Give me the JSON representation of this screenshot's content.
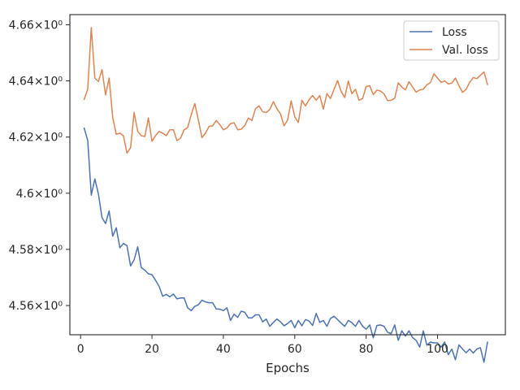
{
  "chart_data": {
    "type": "line",
    "xlabel": "Epochs",
    "ylabel": "",
    "title": "",
    "xlim": [
      -3,
      119
    ],
    "ylim": [
      4.5496,
      4.6636
    ],
    "xticks": [
      0,
      20,
      40,
      60,
      80,
      100
    ],
    "xtick_labels": [
      "0",
      "20",
      "40",
      "60",
      "80",
      "100"
    ],
    "yticks": [
      4.56,
      4.58,
      4.6,
      4.62,
      4.64,
      4.66
    ],
    "ytick_labels": [
      "4.56×10⁰",
      "4.58×10⁰",
      "4.6×10⁰",
      "4.62×10⁰",
      "4.64×10⁰",
      "4.66×10⁰"
    ],
    "grid": false,
    "legend_position": "top-right",
    "series": [
      {
        "name": "Loss",
        "color": "#4c72b0",
        "x": [
          1,
          2,
          3,
          4,
          5,
          6,
          7,
          8,
          9,
          10,
          11,
          12,
          13,
          14,
          15,
          16,
          17,
          18,
          19,
          20,
          21,
          22,
          23,
          24,
          25,
          26,
          27,
          28,
          29,
          30,
          31,
          32,
          33,
          34,
          35,
          36,
          37,
          38,
          39,
          40,
          41,
          42,
          43,
          44,
          45,
          46,
          47,
          48,
          49,
          50,
          51,
          52,
          53,
          54,
          55,
          56,
          57,
          58,
          59,
          60,
          61,
          62,
          63,
          64,
          65,
          66,
          67,
          68,
          69,
          70,
          71,
          72,
          73,
          74,
          75,
          76,
          77,
          78,
          79,
          80,
          81,
          82,
          83,
          84,
          85,
          86,
          87,
          88,
          89,
          90,
          91,
          92,
          93,
          94,
          95,
          96,
          97,
          98,
          99,
          100,
          101,
          102,
          103,
          104,
          105,
          106,
          107,
          108,
          109,
          110,
          111,
          112,
          113,
          114
        ],
        "values": [
          4.6232,
          4.6188,
          4.5993,
          4.6051,
          4.5997,
          4.5913,
          4.5892,
          4.5937,
          4.5847,
          4.5877,
          4.5806,
          4.5821,
          4.5813,
          4.5741,
          4.5763,
          4.5809,
          4.5735,
          4.5726,
          4.5713,
          4.571,
          4.569,
          4.5668,
          4.5633,
          4.564,
          4.5631,
          4.5641,
          4.5624,
          4.5627,
          4.5627,
          4.5592,
          4.5582,
          4.5597,
          4.5603,
          4.5619,
          4.5613,
          4.561,
          4.561,
          4.5588,
          4.5587,
          4.5582,
          4.5592,
          4.5547,
          4.5569,
          4.5558,
          4.558,
          4.5576,
          4.5556,
          4.5556,
          4.5567,
          4.5567,
          4.5542,
          4.5552,
          4.5526,
          4.554,
          4.5552,
          4.5542,
          4.5528,
          4.5536,
          4.5547,
          4.5521,
          4.5547,
          4.5528,
          4.555,
          4.5545,
          4.5529,
          4.5572,
          4.554,
          4.5547,
          4.5526,
          4.5554,
          4.5562,
          4.555,
          4.5537,
          4.5526,
          4.5547,
          4.5539,
          4.5526,
          4.5547,
          4.5526,
          4.5516,
          4.5531,
          4.5485,
          4.5529,
          4.5531,
          4.5526,
          4.5505,
          4.55,
          4.5531,
          4.5476,
          4.551,
          4.5491,
          4.551,
          4.5486,
          4.5476,
          4.5452,
          4.551,
          4.5459,
          4.547,
          4.5467,
          4.5467,
          4.5452,
          4.547,
          4.5425,
          4.5445,
          4.5407,
          4.546,
          4.5445,
          4.5432,
          4.5445,
          4.5431,
          4.5445,
          4.545,
          4.5398,
          4.547
        ]
      },
      {
        "name": "Val. loss",
        "color": "#dd8452",
        "x": [
          1,
          2,
          3,
          4,
          5,
          6,
          7,
          8,
          9,
          10,
          11,
          12,
          13,
          14,
          15,
          16,
          17,
          18,
          19,
          20,
          21,
          22,
          23,
          24,
          25,
          26,
          27,
          28,
          29,
          30,
          31,
          32,
          33,
          34,
          35,
          36,
          37,
          38,
          39,
          40,
          41,
          42,
          43,
          44,
          45,
          46,
          47,
          48,
          49,
          50,
          51,
          52,
          53,
          54,
          55,
          56,
          57,
          58,
          59,
          60,
          61,
          62,
          63,
          64,
          65,
          66,
          67,
          68,
          69,
          70,
          71,
          72,
          73,
          74,
          75,
          76,
          77,
          78,
          79,
          80,
          81,
          82,
          83,
          84,
          85,
          86,
          87,
          88,
          89,
          90,
          91,
          92,
          93,
          94,
          95,
          96,
          97,
          98,
          99,
          100,
          101,
          102,
          103,
          104,
          105,
          106,
          107,
          108,
          109,
          110,
          111,
          112,
          113,
          114
        ],
        "values": [
          4.6334,
          4.637,
          4.659,
          4.641,
          4.6398,
          4.644,
          4.635,
          4.641,
          4.6269,
          4.621,
          4.6214,
          4.6205,
          4.6143,
          4.6162,
          4.6288,
          4.622,
          4.6205,
          4.6202,
          4.6268,
          4.6185,
          4.6205,
          4.622,
          4.6214,
          4.6205,
          4.6226,
          4.6226,
          4.6187,
          4.6196,
          4.6226,
          4.6234,
          4.628,
          4.6319,
          4.6261,
          4.6198,
          4.6214,
          4.6238,
          4.624,
          4.6259,
          4.6244,
          4.6226,
          4.6232,
          4.6248,
          4.6251,
          4.6226,
          4.6228,
          4.6241,
          4.6268,
          4.6259,
          4.6301,
          4.6311,
          4.629,
          4.6287,
          4.6298,
          4.6326,
          4.6301,
          4.6283,
          4.624,
          4.6261,
          4.6329,
          4.6272,
          4.6252,
          4.6331,
          4.6311,
          4.6333,
          4.6348,
          4.6331,
          4.6348,
          4.6299,
          4.6355,
          4.6337,
          4.637,
          4.6401,
          4.6362,
          4.6341,
          4.64,
          4.6354,
          4.637,
          4.6331,
          4.6337,
          4.638,
          4.6383,
          4.6351,
          4.6367,
          4.6364,
          4.6354,
          4.633,
          4.6331,
          4.6338,
          4.6393,
          4.6378,
          4.6368,
          4.6397,
          4.6378,
          4.636,
          4.6368,
          4.637,
          4.6386,
          4.6394,
          4.6425,
          4.641,
          4.6395,
          4.64,
          4.6389,
          4.6392,
          4.641,
          4.6383,
          4.6359,
          4.637,
          4.6395,
          4.6412,
          4.6408,
          4.642,
          4.6432,
          4.6387
        ]
      }
    ]
  }
}
